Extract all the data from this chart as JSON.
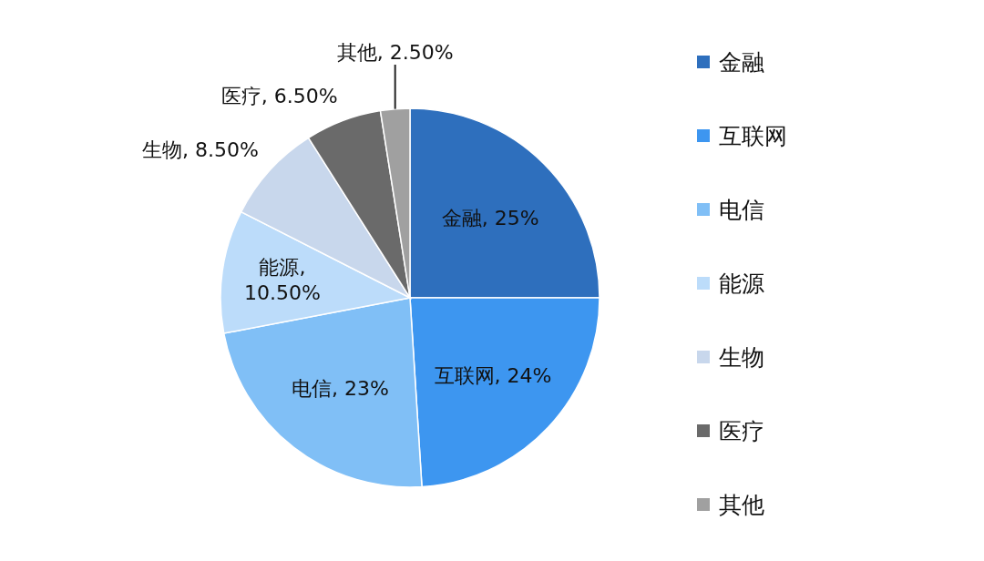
{
  "chart_data": {
    "type": "pie",
    "categories": [
      "金融",
      "互联网",
      "电信",
      "能源",
      "生物",
      "医疗",
      "其他"
    ],
    "values": [
      25,
      24,
      23,
      10.5,
      8.5,
      6.5,
      2.5
    ],
    "value_labels": [
      "金融, 25%",
      "互联网, 24%",
      "电信, 23%",
      "能源, 10.50%",
      "生物, 8.50%",
      "医疗, 6.50%",
      "其他, 2.50%"
    ],
    "colors": [
      "#2e6fbd",
      "#3d96f0",
      "#80bff6",
      "#bcdcfa",
      "#c8d7ec",
      "#6a6a6a",
      "#a0a0a0"
    ],
    "legend": "right"
  }
}
